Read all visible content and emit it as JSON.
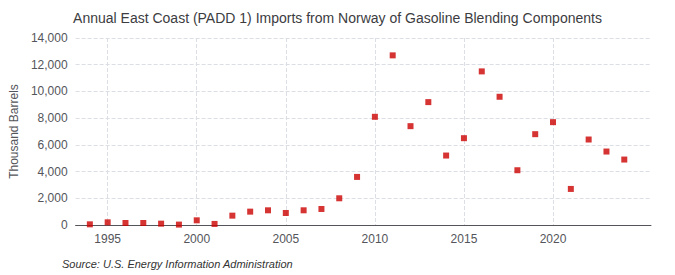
{
  "chart_data": {
    "type": "scatter",
    "title": "Annual East Coast (PADD 1) Imports from Norway of Gasoline Blending Components",
    "ylabel": "Thousand Barrels",
    "annotations": [
      "Source: U.S. Energy Information Administration"
    ],
    "x": [
      1994,
      1995,
      1996,
      1997,
      1998,
      1999,
      2000,
      2001,
      2002,
      2003,
      2004,
      2005,
      2006,
      2007,
      2008,
      2009,
      2010,
      2011,
      2012,
      2013,
      2014,
      2015,
      2016,
      2017,
      2018,
      2019,
      2020,
      2021,
      2022,
      2023,
      2024
    ],
    "values": [
      50,
      200,
      150,
      150,
      100,
      30,
      350,
      80,
      700,
      1000,
      1100,
      900,
      1100,
      1200,
      2000,
      3600,
      8100,
      12700,
      7400,
      9200,
      5200,
      6500,
      11500,
      9600,
      4100,
      6800,
      7700,
      2700,
      6400,
      5500,
      4900
    ],
    "color": "#cc0000",
    "marker": "square",
    "xlim": [
      1993.2,
      2025.5
    ],
    "xticks": [
      1995,
      2000,
      2005,
      2010,
      2015,
      2020
    ],
    "ylim": [
      0,
      14000
    ],
    "yticks": [
      0,
      {
        "value": 2000,
        "label": "2,000"
      },
      {
        "value": 4000,
        "label": "4,000"
      },
      {
        "value": 6000,
        "label": "6,000"
      },
      {
        "value": 8000,
        "label": "8,000"
      },
      {
        "value": 10000,
        "label": "10,000"
      },
      {
        "value": 12000,
        "label": "12,000"
      },
      {
        "value": 14000,
        "label": "14,000"
      }
    ],
    "grid": true
  }
}
